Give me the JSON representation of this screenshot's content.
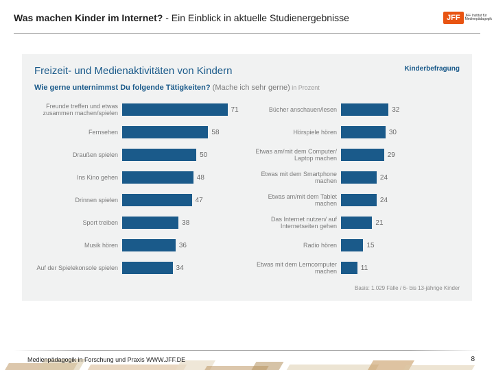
{
  "header": {
    "title_bold": "Was machen Kinder im Internet?",
    "title_rest": " - Ein Einblick in aktuelle Studienergebnisse",
    "logo_text": "JFF",
    "logo_sub": "JFF Institut für Medienpädagogik"
  },
  "chart": {
    "type": "horizontal-bar-two-column",
    "title": "Freizeit- und Medienaktivitäten von Kindern",
    "badge": "Kinderbefragung",
    "subtitle_blue": "Wie gerne unternimmst Du folgende Tätigkeiten?",
    "subtitle_grey": " (Mache ich sehr gerne)",
    "subtitle_unit": " in Prozent",
    "bar_color": "#1a5a8a",
    "background_color": "#f1f2f2",
    "label_color": "#7a7a7a",
    "value_color": "#6a6a6a",
    "max_value": 80,
    "label_fontsize": 9,
    "value_fontsize": 10,
    "left": [
      {
        "label": "Freunde treffen und etwas zusammen machen/spielen",
        "value": 71
      },
      {
        "label": "Fernsehen",
        "value": 58
      },
      {
        "label": "Draußen spielen",
        "value": 50
      },
      {
        "label": "Ins Kino gehen",
        "value": 48
      },
      {
        "label": "Drinnen spielen",
        "value": 47
      },
      {
        "label": "Sport treiben",
        "value": 38
      },
      {
        "label": "Musik hören",
        "value": 36
      },
      {
        "label": "Auf der Spielekonsole spielen",
        "value": 34
      }
    ],
    "right": [
      {
        "label": "Bücher anschauen/lesen",
        "value": 32
      },
      {
        "label": "Hörspiele hören",
        "value": 30
      },
      {
        "label": "Etwas am/mit dem Computer/ Laptop machen",
        "value": 29
      },
      {
        "label": "Etwas mit dem Smartphone machen",
        "value": 24
      },
      {
        "label": "Etwas am/mit dem Tablet machen",
        "value": 24
      },
      {
        "label": "Das Internet nutzen/ auf Internetseiten gehen",
        "value": 21
      },
      {
        "label": "Radio hören",
        "value": 15
      },
      {
        "label": "Etwas mit dem Lerncomputer machen",
        "value": 11
      }
    ],
    "footnote": "Basis: 1.029 Fälle / 6- bis 13-jährige Kinder"
  },
  "footer": {
    "text": "Medienpädagogik in Forschung und Praxis  WWW.JFF.DE",
    "page": "8",
    "deco": {
      "colors": [
        "#b98f5a",
        "#d9c9a8",
        "#c89b63",
        "#e8ddc8",
        "#b5915f",
        "#dccaa7"
      ]
    }
  }
}
